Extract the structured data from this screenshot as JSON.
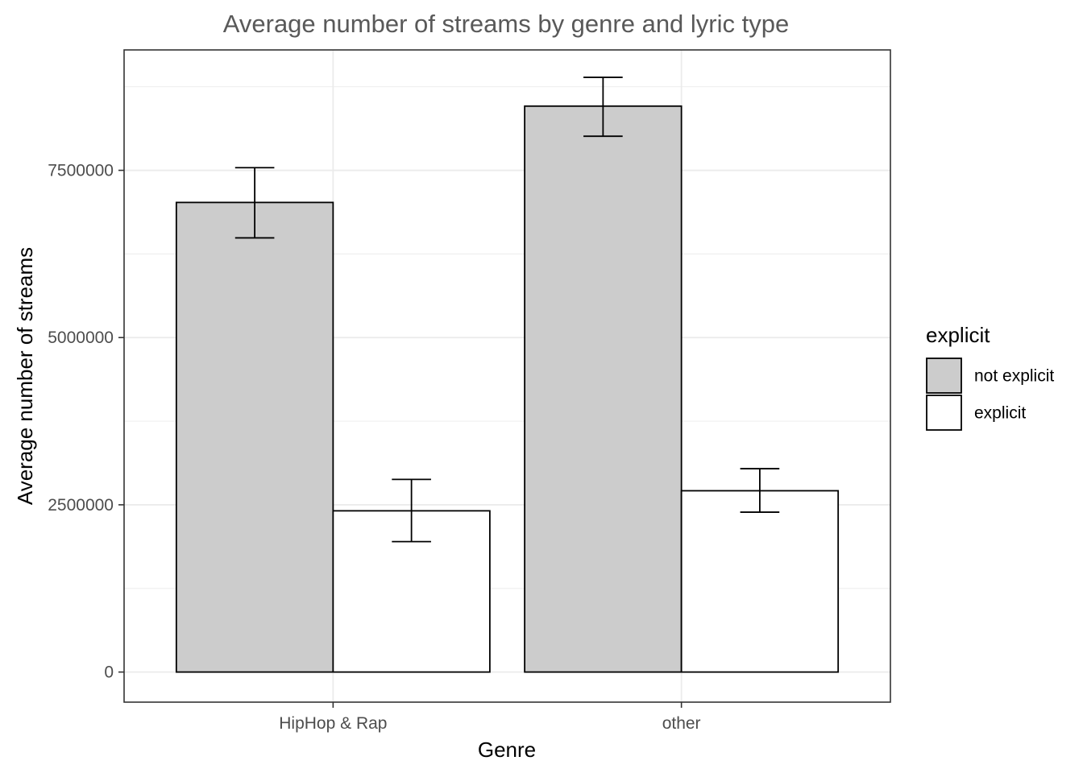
{
  "chart_data": {
    "type": "bar",
    "title": "Average number of streams by genre and lyric type",
    "xlabel": "Genre",
    "ylabel": "Average number of streams",
    "categories": [
      "HipHop & Rap",
      "other"
    ],
    "series": [
      {
        "name": "not explicit",
        "color": "#cccccc",
        "values": [
          7020000,
          8460000
        ],
        "error_low": [
          6490000,
          8010000
        ],
        "error_high": [
          7540000,
          8890000
        ]
      },
      {
        "name": "explicit",
        "color": "#ffffff",
        "values": [
          2410000,
          2710000
        ],
        "error_low": [
          1950000,
          2390000
        ],
        "error_high": [
          2880000,
          3040000
        ]
      }
    ],
    "ylim": [
      -450000,
      9300000
    ],
    "yticks": [
      0,
      2500000,
      5000000,
      7500000
    ],
    "ytick_labels": [
      "0",
      "2500000",
      "5000000",
      "7500000"
    ],
    "legend": {
      "title": "explicit",
      "position": "right"
    },
    "grid": true,
    "bar_border_color": "#000000",
    "grid_color": "#ebebeb",
    "panel_border_color": "#333333"
  }
}
